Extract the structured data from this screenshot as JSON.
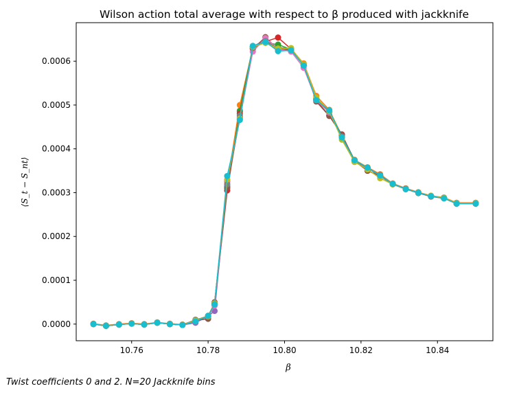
{
  "chart_data": {
    "type": "line",
    "title": "Wilson action total average with respect to β produced with jackknife",
    "xlabel": "β",
    "ylabel": "⟨S_t − S_nt⟩",
    "xlim": [
      10.7455,
      10.8545
    ],
    "ylim": [
      -3.8e-05,
      0.000688
    ],
    "xticks": [
      10.76,
      10.78,
      10.8,
      10.82,
      10.84
    ],
    "xtick_labels": [
      "10.76",
      "10.78",
      "10.80",
      "10.82",
      "10.84"
    ],
    "yticks": [
      0.0,
      0.0001,
      0.0002,
      0.0003,
      0.0004,
      0.0005,
      0.0006
    ],
    "ytick_labels": [
      "0.0000",
      "0.0001",
      "0.0002",
      "0.0003",
      "0.0004",
      "0.0005",
      "0.0006"
    ],
    "grid": false,
    "legend": "none",
    "x": [
      10.75,
      10.7533,
      10.7567,
      10.76,
      10.7633,
      10.7667,
      10.77,
      10.7733,
      10.7767,
      10.78,
      10.7817,
      10.785,
      10.7883,
      10.7917,
      10.795,
      10.7983,
      10.8017,
      10.805,
      10.8083,
      10.8117,
      10.815,
      10.8183,
      10.8217,
      10.825,
      10.8283,
      10.8317,
      10.835,
      10.8383,
      10.8417,
      10.845,
      10.85
    ],
    "series": [
      {
        "color": "#1f77b4",
        "values": [
          0.0,
          -4e-06,
          -1e-06,
          1e-06,
          -1e-06,
          3e-06,
          0.0,
          -2e-06,
          8e-06,
          1.8e-05,
          4.5e-05,
          0.000315,
          0.000485,
          0.000632,
          0.000647,
          0.000631,
          0.000629,
          0.000592,
          0.000513,
          0.000485,
          0.000427,
          0.000373,
          0.000356,
          0.000339,
          0.00032,
          0.000309,
          0.0003,
          0.000292,
          0.000288,
          0.000276,
          0.000276
        ]
      },
      {
        "color": "#ff7f0e",
        "values": [
          1e-06,
          -3e-06,
          0.0,
          2e-06,
          0.0,
          4e-06,
          1e-06,
          -1e-06,
          9e-06,
          1.9e-05,
          4.8e-05,
          0.00032,
          0.0005,
          0.00063,
          0.000644,
          0.000626,
          0.000628,
          0.000595,
          0.000521,
          0.000489,
          0.00043,
          0.000375,
          0.000358,
          0.000342,
          0.000321,
          0.00031,
          0.000301,
          0.000293,
          0.000289,
          0.000277,
          0.000277
        ]
      },
      {
        "color": "#2ca02c",
        "values": [
          0.0,
          -4e-06,
          -1e-06,
          1e-06,
          -1e-06,
          3e-06,
          0.0,
          -2e-06,
          8e-06,
          1.7e-05,
          4.6e-05,
          0.00031,
          0.000487,
          0.000633,
          0.000642,
          0.000638,
          0.000627,
          0.000592,
          0.000515,
          0.000486,
          0.000429,
          0.000374,
          0.000357,
          0.00034,
          0.00032,
          0.000309,
          0.0003,
          0.000292,
          0.000288,
          0.000276,
          0.000276
        ]
      },
      {
        "color": "#d62728",
        "values": [
          0.0,
          -4e-06,
          -1e-06,
          1e-06,
          -1e-06,
          3e-06,
          0.0,
          -2e-06,
          8e-06,
          1.7e-05,
          4.4e-05,
          0.000305,
          0.00048,
          0.000629,
          0.000645,
          0.000654,
          0.000628,
          0.00059,
          0.00051,
          0.000476,
          0.000433,
          0.000372,
          0.00035,
          0.000339,
          0.000319,
          0.000308,
          0.0003,
          0.000292,
          0.000287,
          0.000275,
          0.000275
        ]
      },
      {
        "color": "#9467bd",
        "values": [
          0.0,
          -4e-06,
          -1e-06,
          1e-06,
          -1e-06,
          3e-06,
          0.0,
          -2e-06,
          3e-06,
          1.8e-05,
          3e-05,
          0.000325,
          0.000468,
          0.000634,
          0.000648,
          0.000626,
          0.000626,
          0.00059,
          0.000512,
          0.000484,
          0.000426,
          0.000372,
          0.000356,
          0.000339,
          0.00032,
          0.000308,
          0.0003,
          0.000292,
          0.000288,
          0.000275,
          0.000275
        ]
      },
      {
        "color": "#8c564b",
        "values": [
          0.0,
          -4e-06,
          -1e-06,
          1e-06,
          -1e-06,
          3e-06,
          0.0,
          -2e-06,
          8e-06,
          1.2e-05,
          5e-05,
          0.000312,
          0.000472,
          0.000628,
          0.000655,
          0.000627,
          0.000625,
          0.000593,
          0.000508,
          0.000475,
          0.000432,
          0.000374,
          0.00035,
          0.000338,
          0.000319,
          0.000308,
          0.000299,
          0.000291,
          0.000287,
          0.000275,
          0.000275
        ]
      },
      {
        "color": "#e377c2",
        "values": [
          0.0,
          -4e-06,
          -1e-06,
          1e-06,
          -1e-06,
          3e-06,
          0.0,
          -2e-06,
          8e-06,
          1.7e-05,
          4.2e-05,
          0.000328,
          0.00047,
          0.000622,
          0.000653,
          0.000628,
          0.000622,
          0.000585,
          0.000511,
          0.000483,
          0.000426,
          0.000373,
          0.000356,
          0.00034,
          0.00032,
          0.000309,
          0.0003,
          0.000292,
          0.000288,
          0.000276,
          0.000276
        ]
      },
      {
        "color": "#7f7f7f",
        "values": [
          0.0,
          -4e-06,
          -1e-06,
          1e-06,
          -1e-06,
          3e-06,
          0.0,
          -2e-06,
          1e-05,
          1.7e-05,
          4.8e-05,
          0.000319,
          0.000476,
          0.00063,
          0.000646,
          0.000629,
          0.000627,
          0.00059,
          0.000513,
          0.000485,
          0.000428,
          0.000373,
          0.000356,
          0.00034,
          0.00032,
          0.000309,
          0.0003,
          0.000292,
          0.000288,
          0.000276,
          0.000276
        ]
      },
      {
        "color": "#bcbd22",
        "values": [
          0.0,
          -4e-06,
          -1e-06,
          1e-06,
          -1e-06,
          3e-06,
          0.0,
          -2e-06,
          8e-06,
          1.8e-05,
          4.7e-05,
          0.00033,
          0.000469,
          0.000633,
          0.000642,
          0.000629,
          0.00063,
          0.000593,
          0.000517,
          0.000486,
          0.000421,
          0.00037,
          0.000353,
          0.000333,
          0.000319,
          0.000308,
          0.0003,
          0.000293,
          0.000288,
          0.000276,
          0.000276
        ]
      },
      {
        "color": "#17becf",
        "values": [
          0.0,
          -4e-06,
          -1e-06,
          1e-06,
          -1e-06,
          3e-06,
          0.0,
          -2e-06,
          6e-06,
          1.9e-05,
          4.5e-05,
          0.000338,
          0.000466,
          0.000635,
          0.000644,
          0.000623,
          0.000625,
          0.00059,
          0.000511,
          0.000488,
          0.000426,
          0.000374,
          0.000357,
          0.000339,
          0.00032,
          0.000308,
          0.0003,
          0.000292,
          0.000287,
          0.000275,
          0.000275
        ]
      }
    ]
  },
  "caption": "Twist coefficients 0 and 2. N=20 Jackknife bins"
}
